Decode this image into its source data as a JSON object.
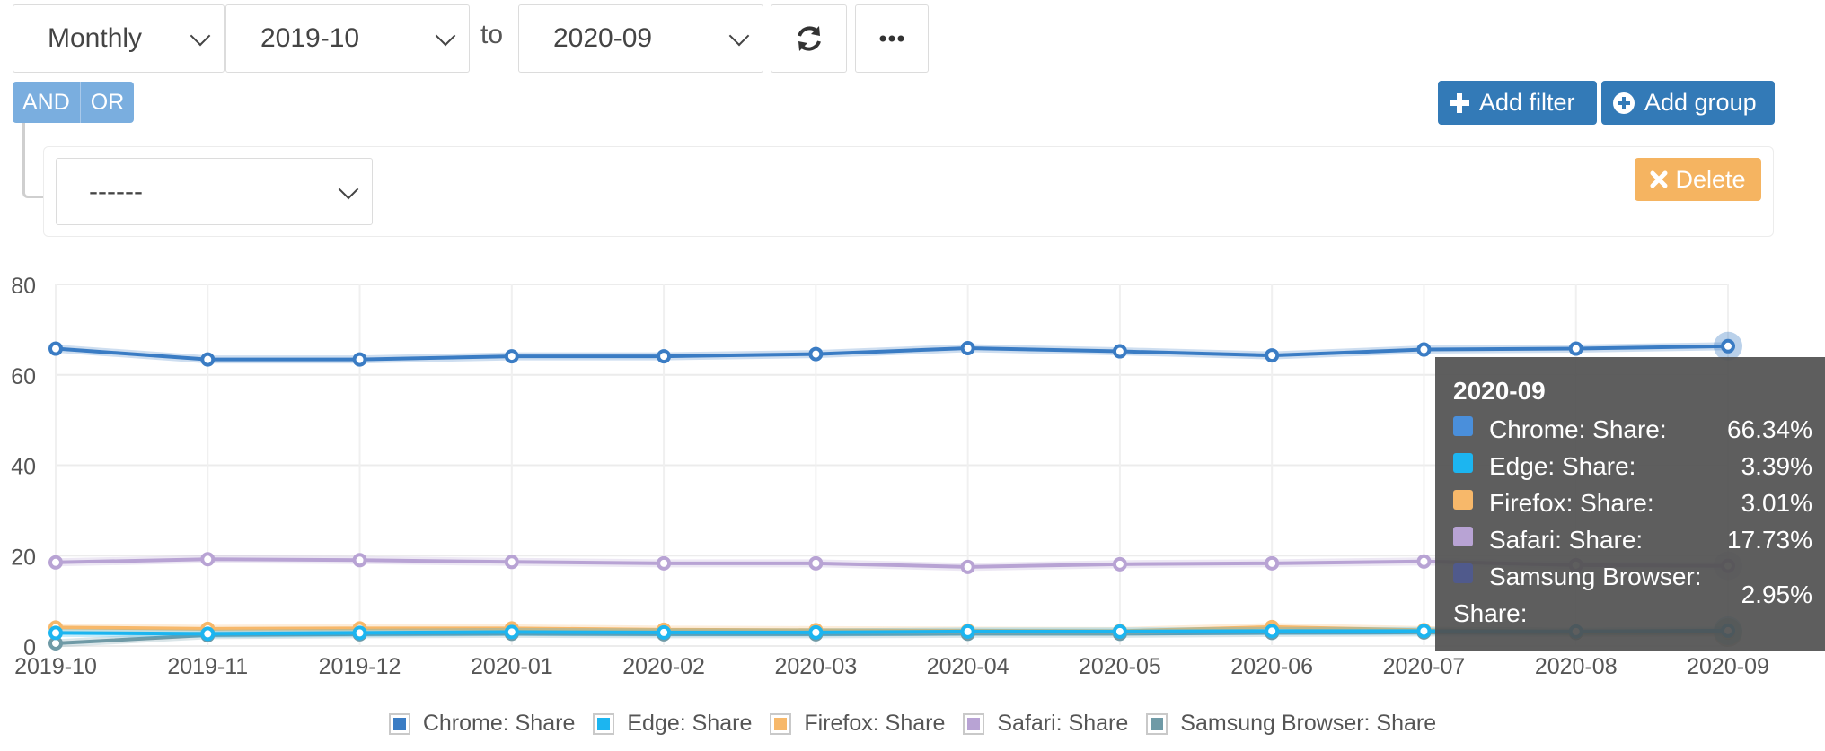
{
  "controls": {
    "period": "Monthly",
    "from": "2019-10",
    "to_label": "to",
    "to": "2020-09",
    "refresh_icon": "refresh-icon",
    "more_icon": "ellipsis-icon"
  },
  "filters": {
    "and_label": "AND",
    "or_label": "OR",
    "add_filter_label": "Add filter",
    "add_group_label": "Add group",
    "rule_select_value": "------",
    "delete_label": "Delete"
  },
  "colors": {
    "primary": "#337ab7",
    "logic": "#7aaedf",
    "delete": "#f5b461"
  },
  "tooltip": {
    "title": "2020-09",
    "rows": [
      {
        "label": "Chrome: Share:",
        "value": "66.34%",
        "color": "#4a8fdb"
      },
      {
        "label": "Edge: Share:",
        "value": "3.39%",
        "color": "#1cb5f0"
      },
      {
        "label": "Firefox: Share:",
        "value": "3.01%",
        "color": "#f7b86a"
      },
      {
        "label": "Safari: Share:",
        "value": "17.73%",
        "color": "#b8a3d4"
      },
      {
        "label": "Samsung Browser:",
        "label2": "Share:",
        "value": "2.95%",
        "color": "#505a8c"
      }
    ]
  },
  "chart_data": {
    "type": "line",
    "x": [
      "2019-10",
      "2019-11",
      "2019-12",
      "2020-01",
      "2020-02",
      "2020-03",
      "2020-04",
      "2020-05",
      "2020-06",
      "2020-07",
      "2020-08",
      "2020-09"
    ],
    "ylim": [
      0,
      80
    ],
    "yticks": [
      0,
      20,
      40,
      60,
      80
    ],
    "grid": true,
    "legend_position": "bottom",
    "series": [
      {
        "name": "Chrome: Share",
        "color": "#3a7cc4",
        "values": [
          65.8,
          63.4,
          63.4,
          64.1,
          64.1,
          64.6,
          65.9,
          65.2,
          64.3,
          65.6,
          65.8,
          66.34
        ]
      },
      {
        "name": "Edge: Share",
        "color": "#1cb5f0",
        "values": [
          2.9,
          2.7,
          2.9,
          3.1,
          3.0,
          3.0,
          3.2,
          3.2,
          3.3,
          3.3,
          3.2,
          3.39
        ]
      },
      {
        "name": "Firefox: Share",
        "color": "#f7b86a",
        "values": [
          4.1,
          3.8,
          3.9,
          3.9,
          3.6,
          3.5,
          3.4,
          3.3,
          4.2,
          3.5,
          3.1,
          3.01
        ]
      },
      {
        "name": "Safari: Share",
        "color": "#b8a3d4",
        "values": [
          18.5,
          19.2,
          19.0,
          18.6,
          18.3,
          18.3,
          17.5,
          18.1,
          18.3,
          18.7,
          17.9,
          17.73
        ]
      },
      {
        "name": "Samsung Browser: Share",
        "color": "#6f9aa6",
        "values": [
          0.6,
          2.4,
          2.6,
          2.7,
          2.6,
          2.6,
          2.7,
          2.7,
          2.9,
          3.0,
          2.9,
          2.95
        ]
      }
    ],
    "highlight_index": 11
  }
}
